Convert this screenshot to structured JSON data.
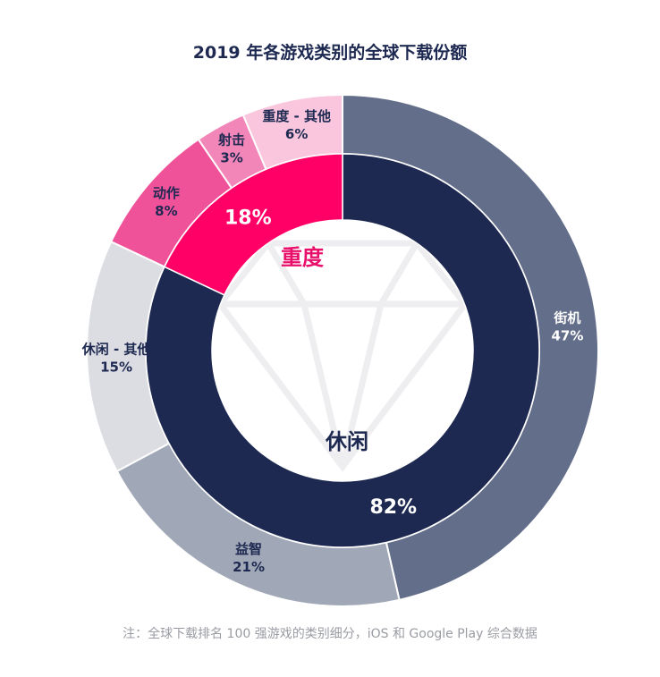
{
  "chart_data": {
    "type": "pie",
    "subtype": "two-level donut",
    "title": "2019 年各游戏类别的全球下载份额",
    "note": "注：全球下载排名 100 强游戏的类别细分，iOS 和 Google Play 综合数据",
    "inner": [
      {
        "name": "休闲",
        "value": 82,
        "label": "82%",
        "color": "#1d2951",
        "name_color": "#1d2951"
      },
      {
        "name": "重度",
        "value": 18,
        "label": "18%",
        "color": "#ff0066",
        "name_color": "#e8106a"
      }
    ],
    "outer": [
      {
        "name": "街机",
        "value": 47,
        "label": "47%",
        "parent": "休闲",
        "color": "#636e8a",
        "text_color": "#ffffff"
      },
      {
        "name": "益智",
        "value": 21,
        "label": "21%",
        "parent": "休闲",
        "color": "#a0a7b6",
        "text_color": "#1d2951"
      },
      {
        "name": "休闲 - 其他",
        "value": 15,
        "label": "15%",
        "parent": "休闲",
        "color": "#dcdde2",
        "text_color": "#1d2951"
      },
      {
        "name": "动作",
        "value": 8,
        "label": "8%",
        "parent": "重度",
        "color": "#f0529a",
        "text_color": "#1d2951"
      },
      {
        "name": "射击",
        "value": 3,
        "label": "3%",
        "parent": "重度",
        "color": "#f386b8",
        "text_color": "#1d2951"
      },
      {
        "name": "重度 - 其他",
        "value": 6,
        "label": "6%",
        "parent": "重度",
        "color": "#f9c6de",
        "text_color": "#1d2951"
      }
    ],
    "start": "12 o'clock, clockwise",
    "legend": "none"
  }
}
